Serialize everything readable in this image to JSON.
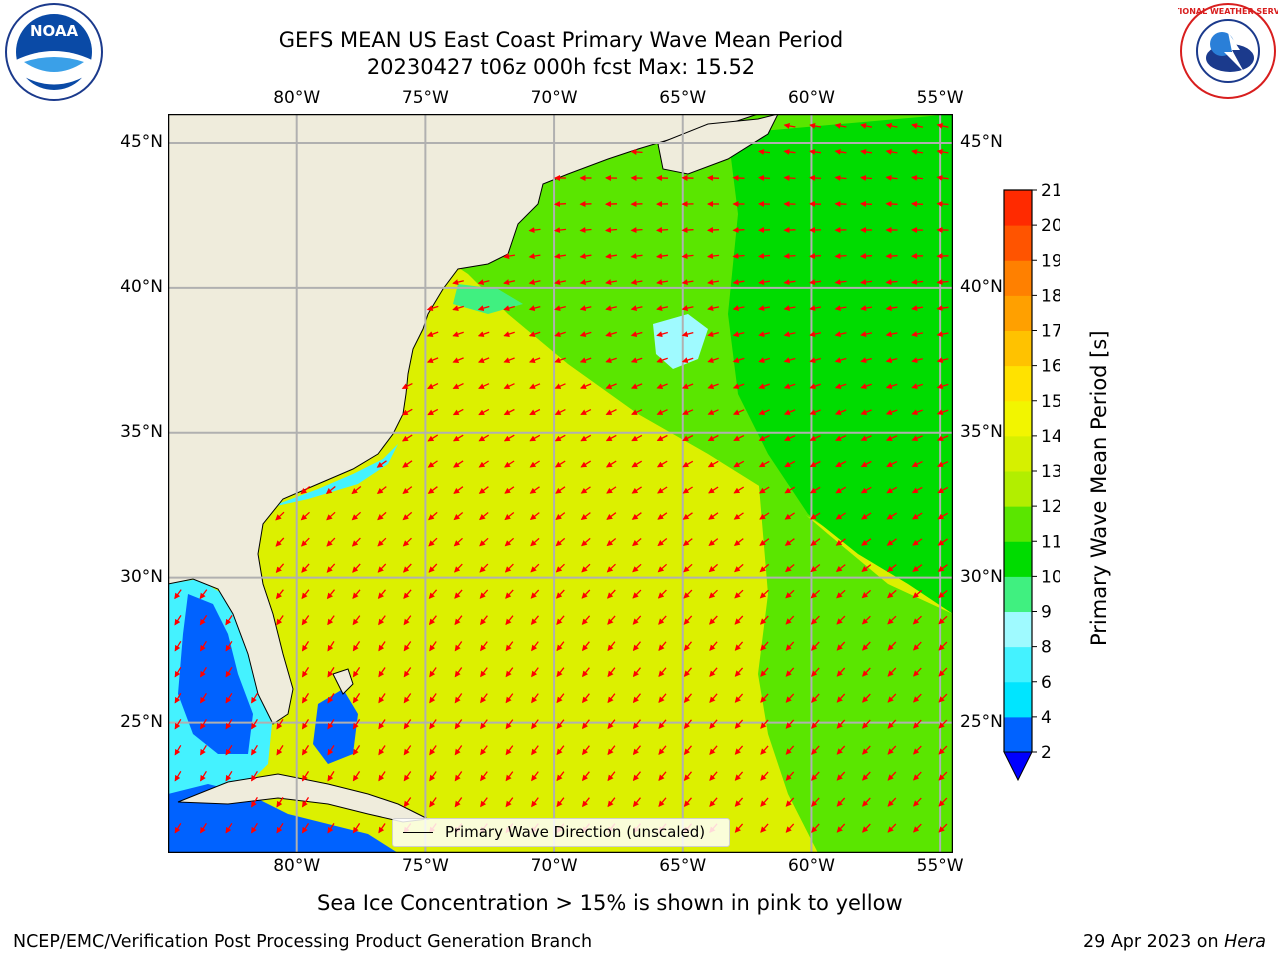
{
  "title": {
    "line1": "GEFS MEAN US East Coast Primary Wave Mean Period",
    "line2": "20230427 t06z 000h fcst   Max: 15.52"
  },
  "logos": {
    "left": {
      "name": "noaa-logo",
      "text": "NOAA"
    },
    "right": {
      "name": "nws-logo",
      "text": "NATIONAL WEATHER SERVICE"
    }
  },
  "axes": {
    "lon_ticks": [
      "80°W",
      "75°W",
      "70°W",
      "65°W",
      "60°W",
      "55°W"
    ],
    "lat_ticks": [
      "45°N",
      "40°N",
      "35°N",
      "30°N",
      "25°N"
    ],
    "lon_values": [
      -80,
      -75,
      -70,
      -65,
      -60,
      -55
    ],
    "lat_values": [
      45,
      40,
      35,
      30,
      25
    ],
    "lon_range": [
      -85,
      -54.5
    ],
    "lat_range": [
      20.5,
      46
    ]
  },
  "legend": {
    "label": "Primary Wave Direction (unscaled)"
  },
  "colorbar": {
    "title": "Primary Wave Mean Period [s]",
    "ticks": [
      "2",
      "4",
      "6",
      "8",
      "9",
      "10",
      "11",
      "12",
      "13",
      "14",
      "15",
      "16",
      "17",
      "18",
      "19",
      "20",
      "21"
    ],
    "colors": [
      "#0062ff",
      "#00e5ff",
      "#44f2ff",
      "#9ffaff",
      "#40f080",
      "#00dc00",
      "#5ae600",
      "#b2ee00",
      "#d6f000",
      "#f2f500",
      "#ffe200",
      "#ffc200",
      "#ffa000",
      "#ff8000",
      "#ff5400",
      "#ff2a00",
      "#ff0000"
    ],
    "under_color": "#0000ff"
  },
  "colors": {
    "land": "#efecdc",
    "ocean_yellow": "#dcf000",
    "ocean_green": "#5ae600",
    "arrow": "#ff0000",
    "grid": "#b0b0b0"
  },
  "caption": "Sea Ice Concentration > 15% is shown in pink to yellow",
  "footer": {
    "left": "NCEP/EMC/Verification Post Processing Product Generation Branch",
    "right_date": "29 Apr 2023 on ",
    "right_machine": "Hera"
  }
}
